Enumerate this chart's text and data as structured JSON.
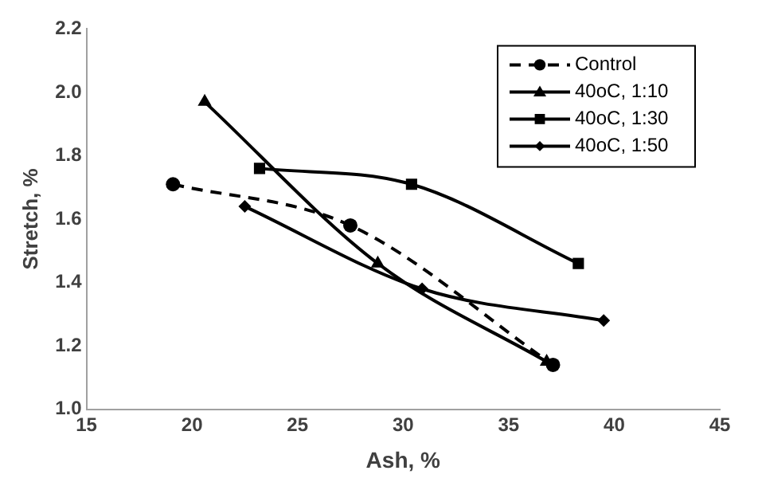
{
  "chart_data": {
    "type": "line",
    "xlabel": "Ash, %",
    "ylabel": "Stretch, %",
    "xlim": [
      15,
      45
    ],
    "xticks": [
      15,
      20,
      25,
      30,
      35,
      40,
      45
    ],
    "ylim": [
      1.0,
      2.2
    ],
    "yticks": [
      {
        "value": 1,
        "label": "1.0"
      },
      1.2,
      1.4,
      1.6,
      1.8,
      {
        "value": 2,
        "label": "2.0"
      },
      2.2
    ],
    "grid": false,
    "legend": "top right",
    "series": [
      {
        "name": "Control",
        "color": "#000000",
        "marker": "circle",
        "line_style": "dashed",
        "x": [
          19.1,
          27.5,
          37.1
        ],
        "values": [
          1.71,
          1.58,
          1.14
        ]
      },
      {
        "name": "40oC, 1:10",
        "color": "#000000",
        "marker": "triangle",
        "line_style": "solid",
        "x": [
          20.6,
          28.8,
          36.8
        ],
        "values": [
          1.97,
          1.46,
          1.15
        ]
      },
      {
        "name": "40oC, 1:30",
        "color": "#000000",
        "marker": "square",
        "line_style": "solid",
        "x": [
          23.2,
          30.4,
          38.3
        ],
        "values": [
          1.76,
          1.71,
          1.46
        ]
      },
      {
        "name": "40oC, 1:50",
        "color": "#000000",
        "marker": "diamond",
        "line_style": "solid",
        "x": [
          22.5,
          30.9,
          39.5
        ],
        "values": [
          1.64,
          1.38,
          1.28
        ]
      }
    ]
  }
}
